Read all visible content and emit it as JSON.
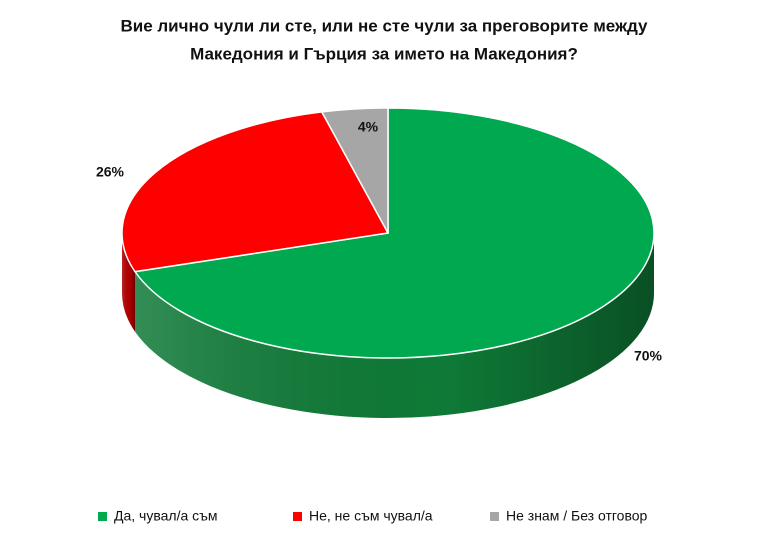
{
  "chart_data": {
    "type": "pie3d",
    "title": [
      "Вие лично чули ли сте, или не сте чули за преговорите между",
      "Македония и Гърция за името на Македония?"
    ],
    "categories": [
      "Да, чувал/а съм",
      "Не, не съм чувал/а",
      "Не знам / Без отговор"
    ],
    "values": [
      70,
      26,
      4
    ],
    "value_labels": [
      "70%",
      "26%",
      "4%"
    ],
    "colors": [
      "#00a94f",
      "#ff0000",
      "#a6a6a6"
    ],
    "side_colors": [
      "#0f7a37",
      "#b00000",
      "#777777"
    ]
  }
}
